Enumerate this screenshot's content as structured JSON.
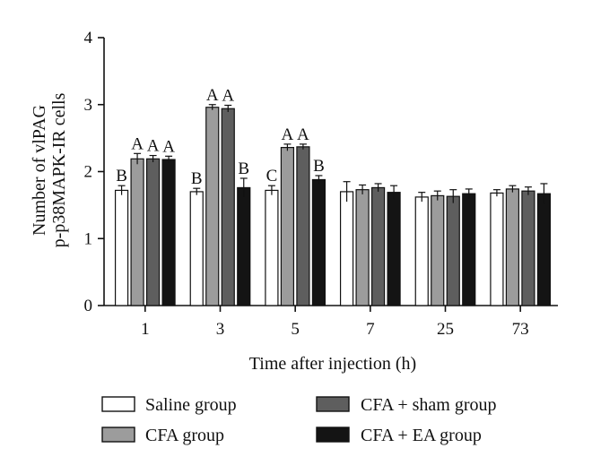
{
  "chart_data": {
    "type": "bar",
    "title": "",
    "xlabel": "Time after injection (h)",
    "ylabel_lines": [
      "Number of vlPAG",
      "p-p38MAPK-IR cells"
    ],
    "ylim": [
      0,
      4
    ],
    "yticks": [
      "0",
      "1",
      "2",
      "3",
      "4"
    ],
    "categories": [
      "1",
      "3",
      "5",
      "7",
      "25",
      "73"
    ],
    "grid": false,
    "legend_position": "bottom",
    "series": [
      {
        "name": "Saline group",
        "color": "#ffffff",
        "values": [
          1.72,
          1.7,
          1.72,
          1.7,
          1.62,
          1.68
        ],
        "errors": [
          0.07,
          0.05,
          0.07,
          0.15,
          0.07,
          0.05
        ],
        "labels": [
          "B",
          "B",
          "C",
          "",
          "",
          ""
        ]
      },
      {
        "name": "CFA group",
        "color": "#9c9c9c",
        "values": [
          2.19,
          2.96,
          2.36,
          1.73,
          1.64,
          1.74
        ],
        "errors": [
          0.08,
          0.04,
          0.05,
          0.07,
          0.07,
          0.05
        ],
        "labels": [
          "A",
          "A",
          "A",
          "",
          "",
          ""
        ]
      },
      {
        "name": "CFA + sham group",
        "color": "#5e5e5e",
        "values": [
          2.19,
          2.94,
          2.37,
          1.76,
          1.63,
          1.71
        ],
        "errors": [
          0.05,
          0.05,
          0.04,
          0.06,
          0.1,
          0.06
        ],
        "labels": [
          "A",
          "A",
          "A",
          "",
          "",
          ""
        ]
      },
      {
        "name": "CFA + EA group",
        "color": "#141414",
        "values": [
          2.18,
          1.76,
          1.88,
          1.69,
          1.67,
          1.67
        ],
        "errors": [
          0.05,
          0.14,
          0.06,
          0.1,
          0.07,
          0.15
        ],
        "labels": [
          "A",
          "B",
          "B",
          "",
          "",
          ""
        ]
      }
    ]
  }
}
